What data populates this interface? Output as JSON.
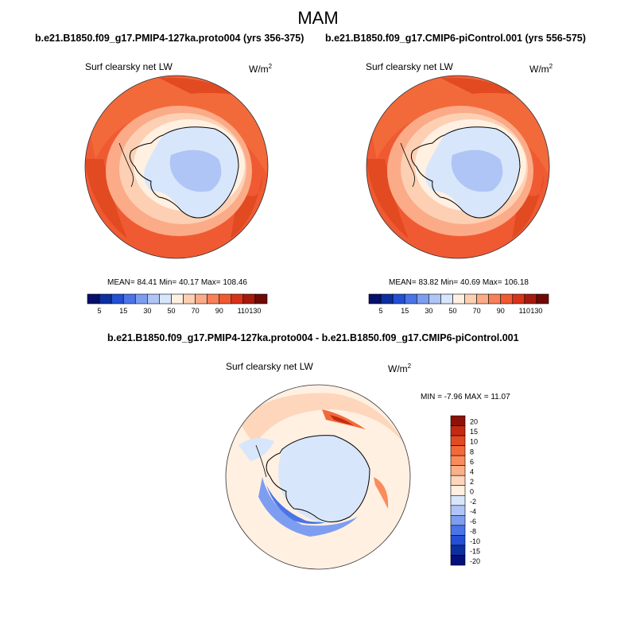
{
  "season": "MAM",
  "panels": [
    {
      "run_title": "b.e21.B1850.f09_g17.PMIP4-127ka.proto004 (yrs 356-375)",
      "variable": "Surf clearsky net LW",
      "units_base": "W/m",
      "units_exp": "2",
      "stats": "MEAN=  84.41  Min=  40.17  Max= 108.46"
    },
    {
      "run_title": "b.e21.B1850.f09_g17.CMIP6-piControl.001 (yrs 556-575)",
      "variable": "Surf clearsky net LW",
      "units_base": "W/m",
      "units_exp": "2",
      "stats": "MEAN=  83.82  Min=  40.69  Max= 106.18"
    }
  ],
  "diff_panel": {
    "title": "b.e21.B1850.f09_g17.PMIP4-127ka.proto004 - b.e21.B1850.f09_g17.CMIP6-piControl.001",
    "variable": "Surf clearsky net LW",
    "units_base": "W/m",
    "units_exp": "2",
    "stats": "MIN =  -7.96 MAX =  11.07"
  },
  "abs_colorbar": {
    "labels": [
      "5",
      "15",
      "30",
      "50",
      "70",
      "90",
      "110",
      "130"
    ],
    "colors": [
      "#08106b",
      "#0d2fa0",
      "#2350d4",
      "#4a74e8",
      "#7d9ef0",
      "#aec5f6",
      "#d8e6fb",
      "#fff0e2",
      "#fdd0b4",
      "#fbab88",
      "#f7805a",
      "#f05a33",
      "#d8331a",
      "#a61a0e",
      "#6e0a06"
    ]
  },
  "diff_colorbar": {
    "labels": [
      "20",
      "15",
      "10",
      "8",
      "6",
      "4",
      "2",
      "0",
      "-2",
      "-4",
      "-6",
      "-8",
      "-10",
      "-15",
      "-20"
    ],
    "colors": [
      "#8c1208",
      "#c42a12",
      "#e24a22",
      "#f36a3a",
      "#f98c5a",
      "#fbb08a",
      "#fdd6bc",
      "#fff0e2",
      "#d8e6fb",
      "#aec5f6",
      "#7d9ef0",
      "#4a74e8",
      "#2350d4",
      "#0d2fa0",
      "#06107a"
    ]
  }
}
